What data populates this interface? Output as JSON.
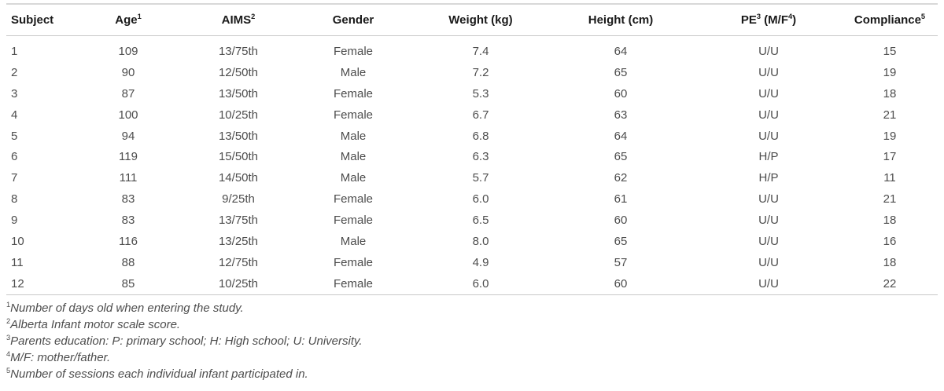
{
  "table": {
    "columns": [
      {
        "id": "subject",
        "align": "left",
        "parts": [
          {
            "text": "Subject"
          }
        ]
      },
      {
        "id": "age",
        "align": "center",
        "parts": [
          {
            "text": "Age"
          },
          {
            "sup": "1"
          }
        ]
      },
      {
        "id": "aims",
        "align": "center",
        "parts": [
          {
            "text": "AIMS"
          },
          {
            "sup": "2"
          }
        ]
      },
      {
        "id": "gender",
        "align": "center",
        "parts": [
          {
            "text": "Gender"
          }
        ]
      },
      {
        "id": "weight",
        "align": "center",
        "parts": [
          {
            "text": "Weight (kg)"
          }
        ]
      },
      {
        "id": "height",
        "align": "center",
        "parts": [
          {
            "text": "Height (cm)"
          }
        ]
      },
      {
        "id": "pe",
        "align": "center",
        "parts": [
          {
            "text": "PE"
          },
          {
            "sup": "3"
          },
          {
            "text": " (M/F"
          },
          {
            "sup": "4"
          },
          {
            "text": ")"
          }
        ]
      },
      {
        "id": "compliance",
        "align": "center",
        "parts": [
          {
            "text": "Compliance"
          },
          {
            "sup": "5"
          }
        ]
      }
    ],
    "rows": [
      [
        "1",
        "109",
        "13/75th",
        "Female",
        "7.4",
        "64",
        "U/U",
        "15"
      ],
      [
        "2",
        "90",
        "12/50th",
        "Male",
        "7.2",
        "65",
        "U/U",
        "19"
      ],
      [
        "3",
        "87",
        "13/50th",
        "Female",
        "5.3",
        "60",
        "U/U",
        "18"
      ],
      [
        "4",
        "100",
        "10/25th",
        "Female",
        "6.7",
        "63",
        "U/U",
        "21"
      ],
      [
        "5",
        "94",
        "13/50th",
        "Male",
        "6.8",
        "64",
        "U/U",
        "19"
      ],
      [
        "6",
        "119",
        "15/50th",
        "Male",
        "6.3",
        "65",
        "H/P",
        "17"
      ],
      [
        "7",
        "111",
        "14/50th",
        "Male",
        "5.7",
        "62",
        "H/P",
        "11"
      ],
      [
        "8",
        "83",
        "9/25th",
        "Female",
        "6.0",
        "61",
        "U/U",
        "21"
      ],
      [
        "9",
        "83",
        "13/75th",
        "Female",
        "6.5",
        "60",
        "U/U",
        "18"
      ],
      [
        "10",
        "116",
        "13/25th",
        "Male",
        "8.0",
        "65",
        "U/U",
        "16"
      ],
      [
        "11",
        "88",
        "12/75th",
        "Female",
        "4.9",
        "57",
        "U/U",
        "18"
      ],
      [
        "12",
        "85",
        "10/25th",
        "Female",
        "6.0",
        "60",
        "U/U",
        "22"
      ]
    ]
  },
  "footnotes": [
    {
      "sup": "1",
      "text": "Number of days old when entering the study."
    },
    {
      "sup": "2",
      "text": "Alberta Infant motor scale score."
    },
    {
      "sup": "3",
      "text": "Parents education: P: primary school; H: High school; U: University."
    },
    {
      "sup": "4",
      "text": "M/F: mother/father."
    },
    {
      "sup": "5",
      "text": "Number of sessions each individual infant participated in."
    }
  ],
  "colors": {
    "header_text": "#1a1a1a",
    "body_text": "#4d4d4d",
    "rule": "#c8c8c8"
  }
}
